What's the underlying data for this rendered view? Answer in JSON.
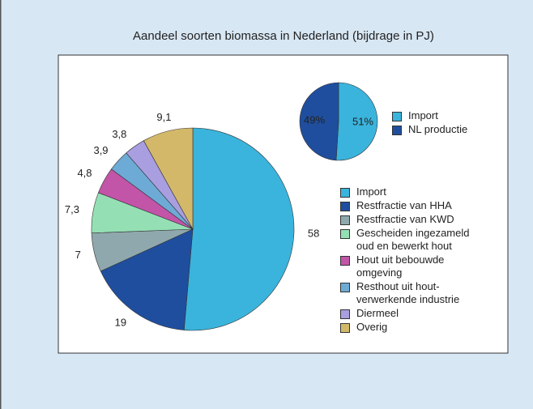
{
  "chart_data": [
    {
      "type": "pie",
      "title": "Aandeel soorten biomassa in Nederland (bijdrage in PJ)",
      "categories": [
        "Import",
        "Restfractie van HHA",
        "Restfractie van KWD",
        "Gescheiden ingezameld oud en bewerkt hout",
        "Hout uit bebouwde omgeving",
        "Resthout uit hout-verwerkende industrie",
        "Diermeel",
        "Overig"
      ],
      "values": [
        58,
        19,
        7,
        7.3,
        4.8,
        3.9,
        3.8,
        9.1
      ],
      "value_labels": [
        "58",
        "19",
        "7",
        "7,3",
        "4,8",
        "3,9",
        "3,8",
        "9,1"
      ],
      "colors": [
        "#3ab4dc",
        "#1f4e9e",
        "#8fa8ad",
        "#94e0b4",
        "#c255a8",
        "#6eaad6",
        "#a89ee0",
        "#d4b86a"
      ]
    },
    {
      "type": "pie",
      "categories": [
        "Import",
        "NL productie"
      ],
      "values": [
        51,
        49
      ],
      "value_labels": [
        "51%",
        "49%"
      ],
      "colors": [
        "#3ab4dc",
        "#1f4e9e"
      ]
    }
  ]
}
